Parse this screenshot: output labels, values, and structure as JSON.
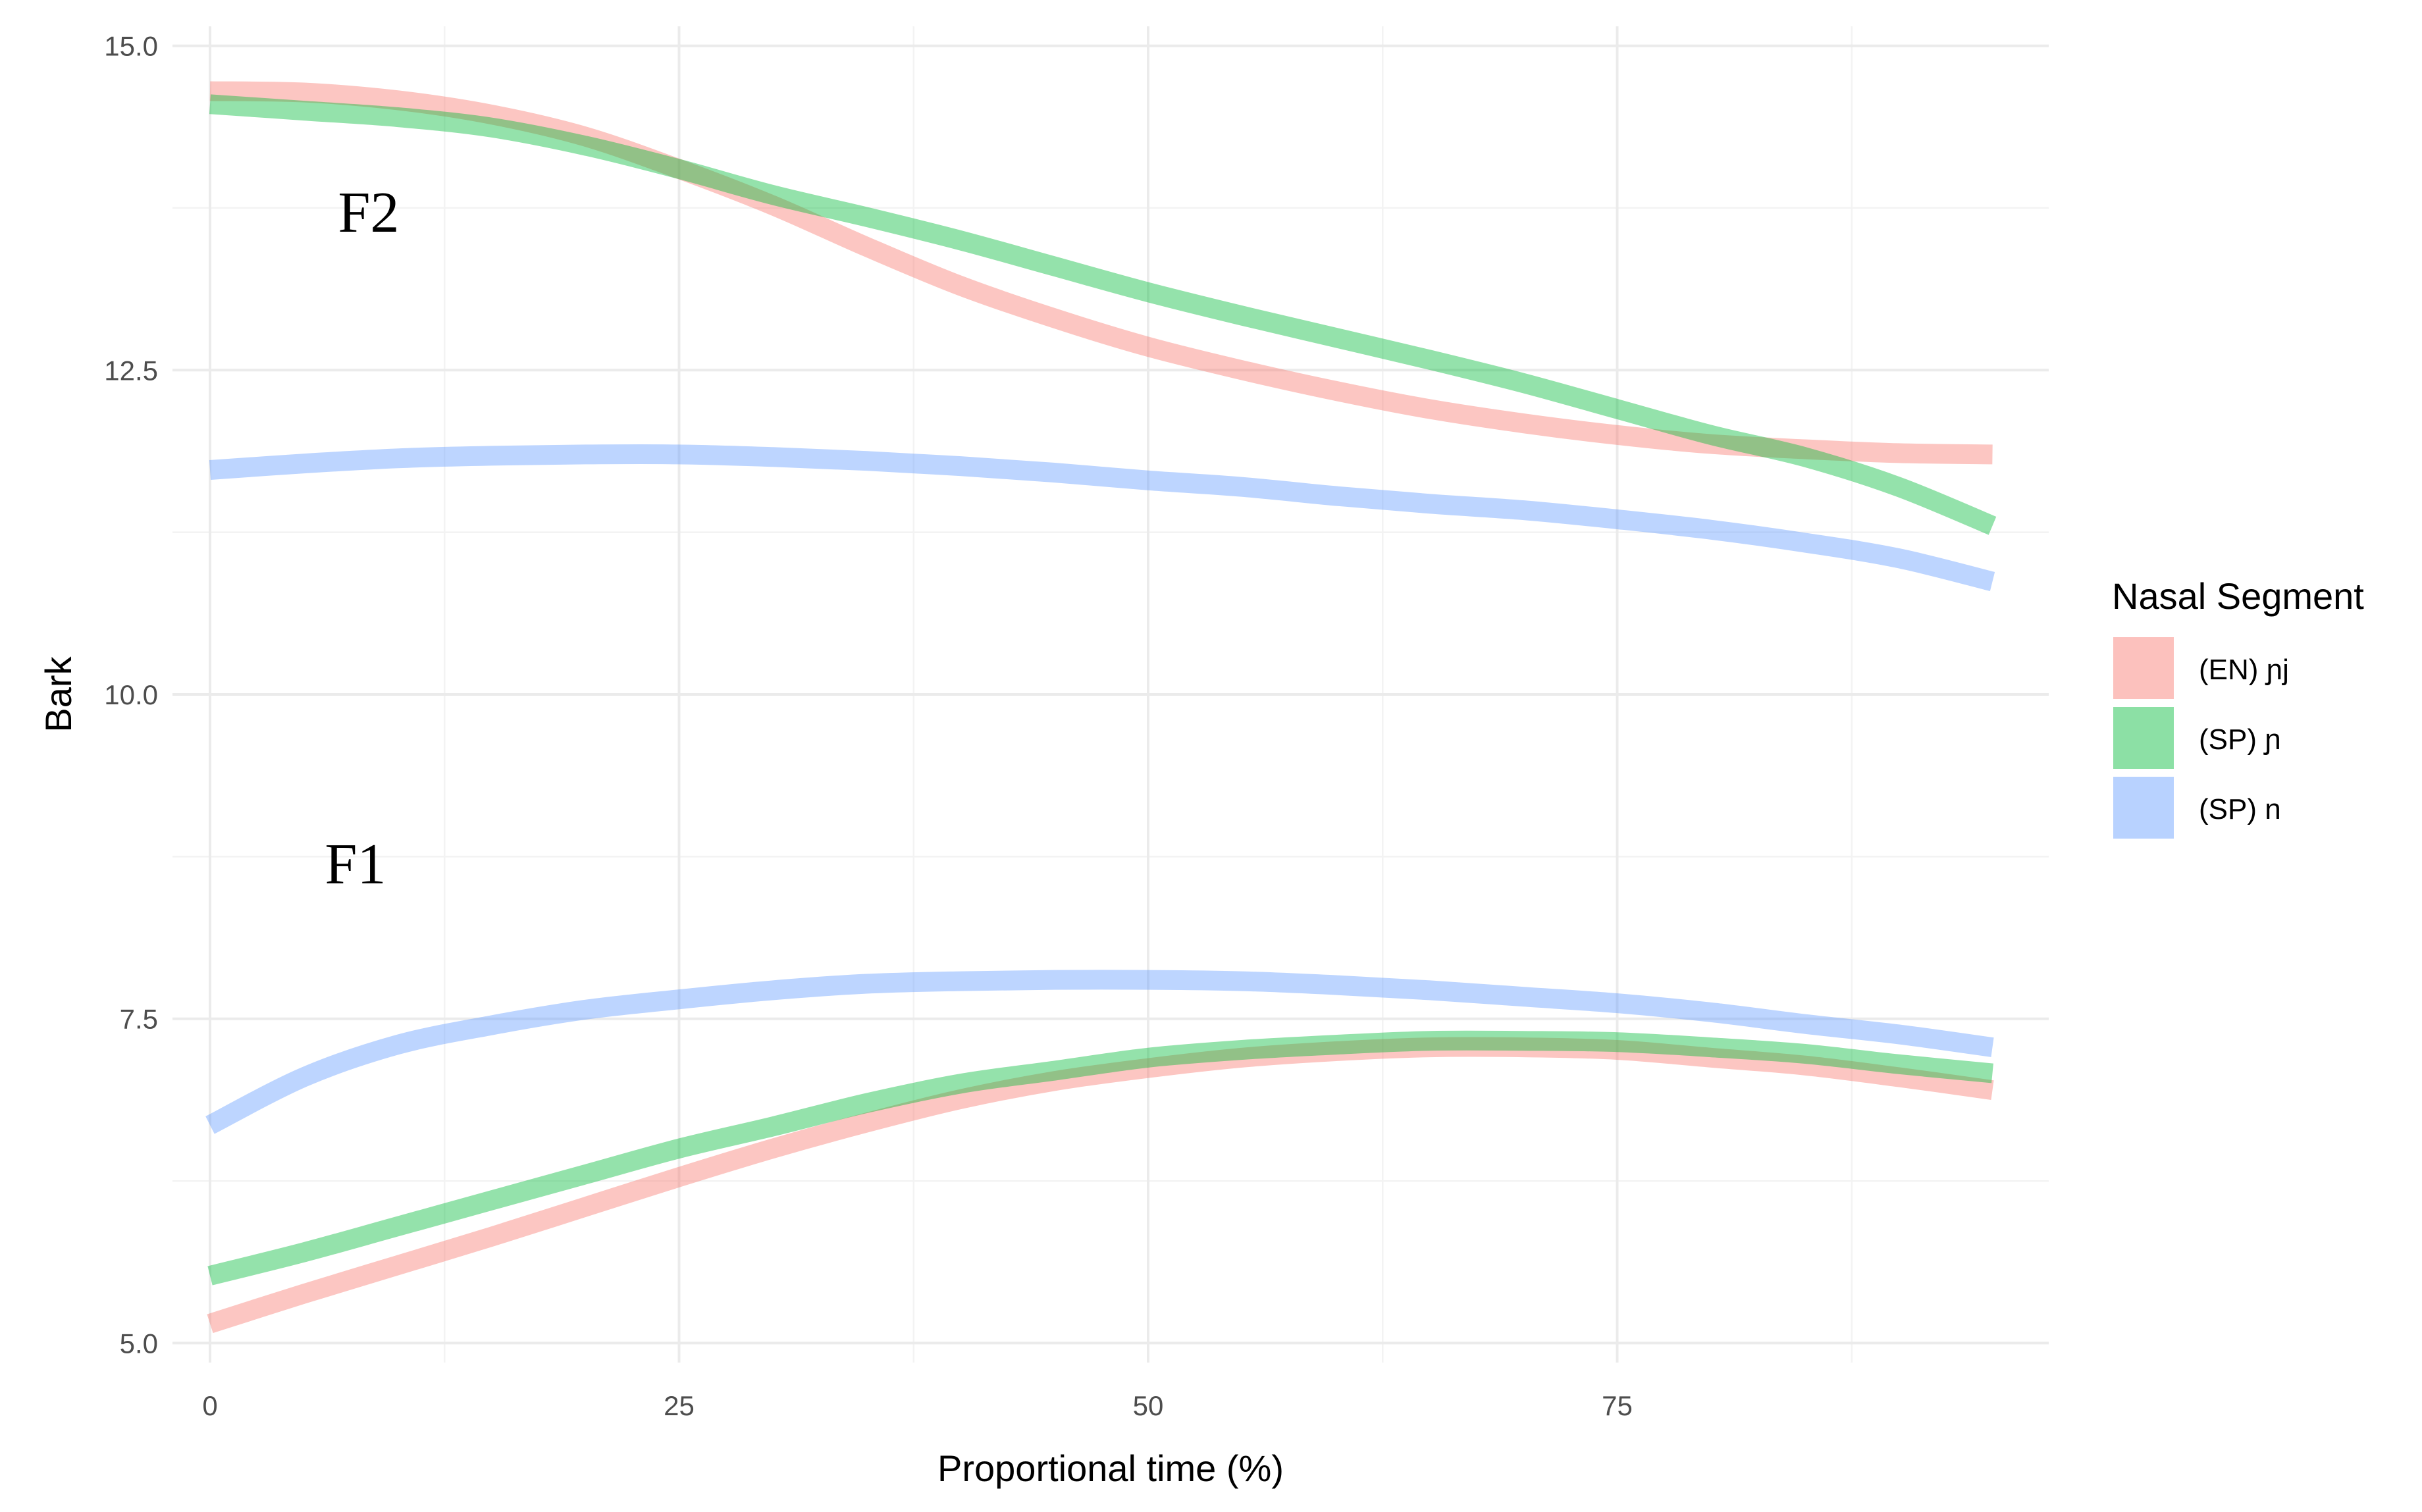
{
  "chart_data": {
    "type": "line",
    "title": "",
    "xlabel": "Proportional time (%)",
    "ylabel": "Bark",
    "xlim": [
      -2,
      98
    ],
    "ylim": [
      4.85,
      15.15
    ],
    "x_ticks": [
      0,
      25,
      50,
      75
    ],
    "x_tick_labels": [
      "0",
      "25",
      "50",
      "75"
    ],
    "y_ticks": [
      5.0,
      7.5,
      10.0,
      12.5,
      15.0
    ],
    "y_tick_labels": [
      "5.0",
      "7.5",
      "10.0",
      "12.5",
      "15.0"
    ],
    "grid": true,
    "legend": {
      "title": "Nasal Segment",
      "placement": "right",
      "entries": [
        "(EN) ɲj",
        "(SP) ɲ",
        "(SP) n"
      ]
    },
    "annotations": [
      "F2",
      "F1"
    ],
    "x": [
      0,
      5,
      10,
      15,
      20,
      25,
      30,
      35,
      40,
      45,
      50,
      55,
      60,
      65,
      70,
      75,
      80,
      85,
      90,
      95
    ],
    "series": [
      {
        "name": "(EN) ɲj",
        "formant": "F2",
        "color": "#f8766d",
        "values": [
          14.65,
          14.64,
          14.58,
          14.47,
          14.3,
          14.05,
          13.77,
          13.45,
          13.15,
          12.9,
          12.68,
          12.5,
          12.34,
          12.2,
          12.09,
          12.0,
          11.93,
          11.89,
          11.86,
          11.85
        ]
      },
      {
        "name": "(SP) ɲ",
        "formant": "F2",
        "color": "#00ba38",
        "values": [
          14.55,
          14.5,
          14.45,
          14.37,
          14.23,
          14.05,
          13.85,
          13.68,
          13.5,
          13.3,
          13.1,
          12.92,
          12.75,
          12.58,
          12.4,
          12.2,
          12.0,
          11.83,
          11.6,
          11.3
        ]
      },
      {
        "name": "(SP) n",
        "formant": "F2",
        "color": "#619cff",
        "values": [
          11.73,
          11.78,
          11.82,
          11.84,
          11.85,
          11.85,
          11.83,
          11.8,
          11.76,
          11.71,
          11.65,
          11.6,
          11.53,
          11.47,
          11.42,
          11.35,
          11.27,
          11.17,
          11.05,
          10.87
        ]
      },
      {
        "name": "(EN) ɲj",
        "formant": "F1",
        "color": "#f8766d",
        "values": [
          5.15,
          5.38,
          5.6,
          5.82,
          6.05,
          6.28,
          6.5,
          6.7,
          6.88,
          7.02,
          7.12,
          7.2,
          7.25,
          7.28,
          7.28,
          7.26,
          7.2,
          7.14,
          7.05,
          6.95
        ]
      },
      {
        "name": "(SP) ɲ",
        "formant": "F1",
        "color": "#00ba38",
        "values": [
          5.52,
          5.7,
          5.9,
          6.1,
          6.3,
          6.5,
          6.67,
          6.85,
          7.0,
          7.1,
          7.2,
          7.26,
          7.3,
          7.33,
          7.33,
          7.32,
          7.28,
          7.23,
          7.15,
          7.08
        ]
      },
      {
        "name": "(SP) n",
        "formant": "F1",
        "color": "#619cff",
        "values": [
          6.68,
          7.05,
          7.3,
          7.45,
          7.57,
          7.65,
          7.72,
          7.77,
          7.79,
          7.8,
          7.8,
          7.79,
          7.76,
          7.72,
          7.67,
          7.62,
          7.55,
          7.46,
          7.38,
          7.28
        ]
      }
    ]
  }
}
